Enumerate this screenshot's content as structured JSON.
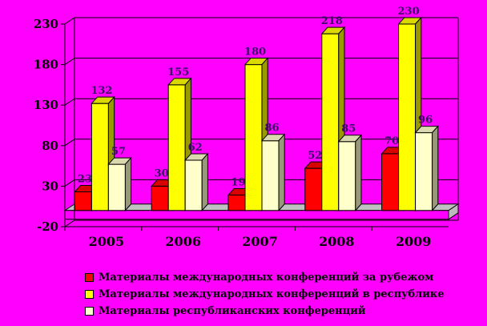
{
  "chart_data": {
    "type": "bar",
    "categories": [
      "2005",
      "2006",
      "2007",
      "2008",
      "2009"
    ],
    "series": [
      {
        "name": "Материалы международных конференций за рубежом",
        "values": [
          23,
          30,
          19,
          52,
          70
        ],
        "color": "#ff0000"
      },
      {
        "name": "Материалы международных конференций в республике",
        "values": [
          132,
          155,
          180,
          218,
          230
        ],
        "color": "#ffff00"
      },
      {
        "name": "Материалы республиканских конференций",
        "values": [
          57,
          62,
          86,
          85,
          96
        ],
        "color": "#ffffcc"
      }
    ],
    "data_labels": [
      [
        "23",
        "30",
        "19",
        "52",
        "70"
      ],
      [
        "132",
        "155",
        "180",
        "218",
        "230"
      ],
      [
        "57",
        "62",
        "86",
        "85",
        "96"
      ]
    ],
    "yticks": [
      "-20",
      "30",
      "80",
      "130",
      "180",
      "230"
    ],
    "ylim": [
      -20,
      230
    ],
    "grid": true,
    "legend_position": "bottom",
    "floor_color": "#c0c0c0",
    "wall_color": "#ff00ff"
  }
}
